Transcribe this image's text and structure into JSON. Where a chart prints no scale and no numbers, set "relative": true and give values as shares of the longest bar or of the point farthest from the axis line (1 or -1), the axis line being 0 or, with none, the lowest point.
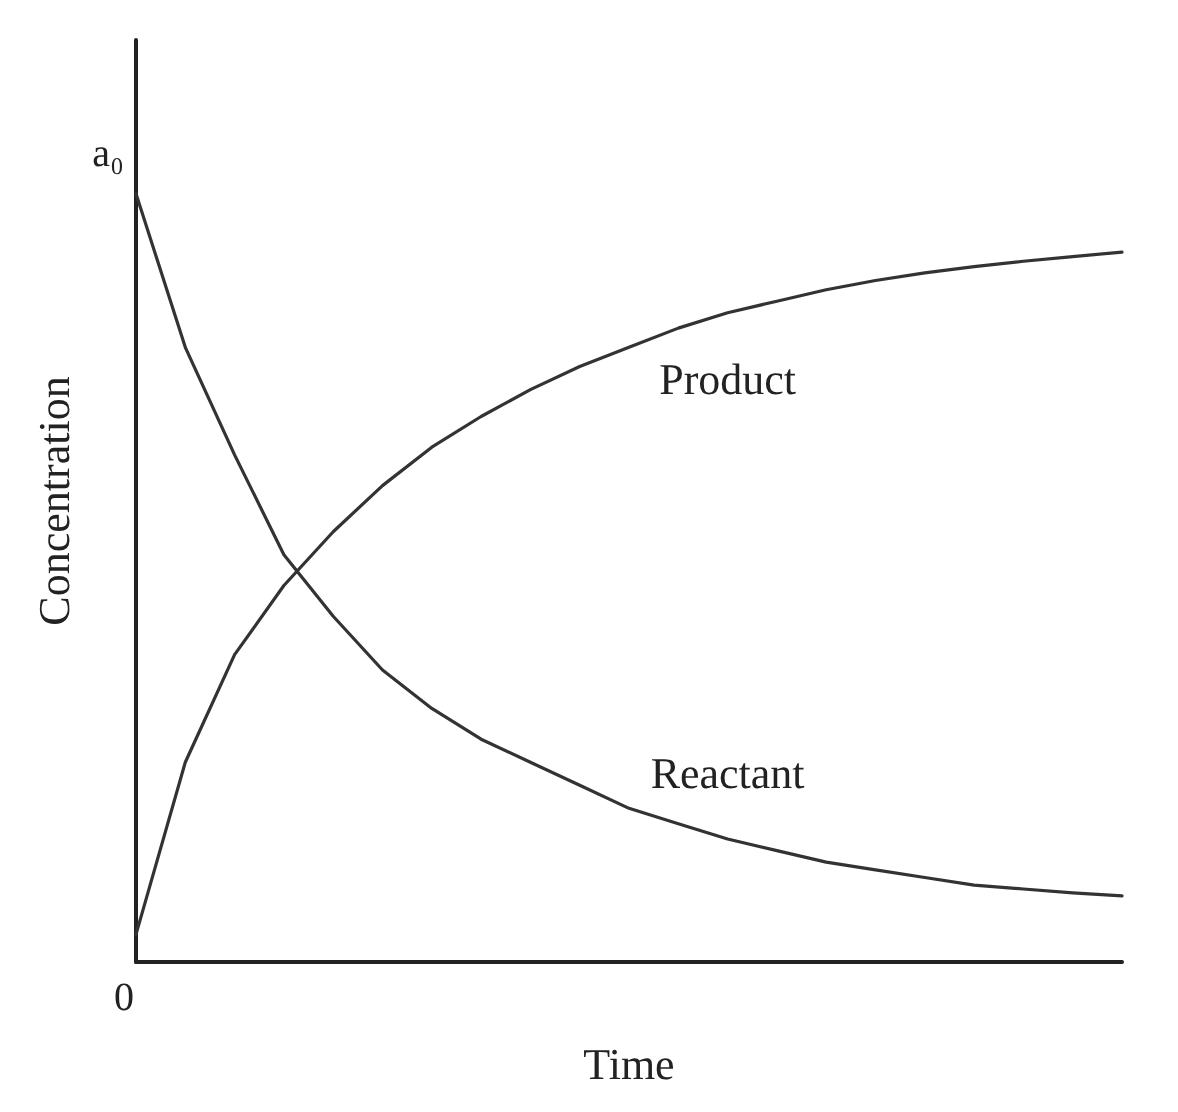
{
  "chart_data": {
    "type": "line",
    "xlabel": "Time",
    "ylabel": "Concentration",
    "relative": true,
    "grid": false,
    "legend": false,
    "marker": "none",
    "line_style": "solid",
    "categories": [
      null,
      null,
      null,
      null,
      null,
      null,
      null,
      null,
      null,
      null,
      null,
      null,
      null,
      null,
      null,
      null,
      null,
      null,
      null,
      null,
      null
    ],
    "series": [
      {
        "name": "Product",
        "color": "#333333",
        "values": [
          0.036,
          0.26,
          0.4,
          0.49,
          0.56,
          0.62,
          0.67,
          0.71,
          0.745,
          0.775,
          0.8,
          0.825,
          0.845,
          0.86,
          0.875,
          0.887,
          0.897,
          0.905,
          0.912,
          0.918,
          0.924
        ]
      },
      {
        "name": "Reactant",
        "color": "#333333",
        "values": [
          1.0,
          0.8,
          0.66,
          0.53,
          0.45,
          0.38,
          0.33,
          0.29,
          0.26,
          0.23,
          0.2,
          0.18,
          0.16,
          0.145,
          0.13,
          0.12,
          0.11,
          0.1,
          0.095,
          0.09,
          0.086
        ]
      }
    ],
    "annotations": [
      "a₀",
      "0"
    ]
  }
}
